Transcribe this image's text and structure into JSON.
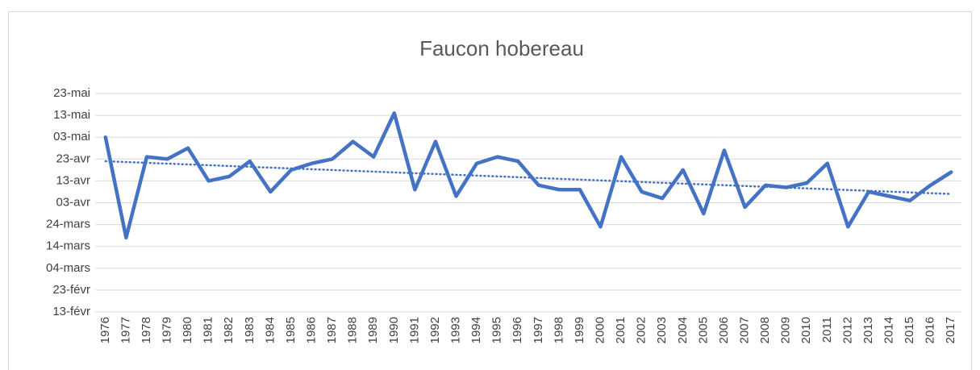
{
  "chart_data": {
    "type": "line",
    "title": "Faucon hobereau",
    "categories": [
      "1976",
      "1977",
      "1978",
      "1979",
      "1980",
      "1981",
      "1982",
      "1983",
      "1984",
      "1985",
      "1986",
      "1987",
      "1988",
      "1989",
      "1990",
      "1991",
      "1992",
      "1993",
      "1994",
      "1995",
      "1996",
      "1997",
      "1998",
      "1999",
      "2000",
      "2001",
      "2002",
      "2003",
      "2004",
      "2005",
      "2006",
      "2007",
      "2008",
      "2009",
      "2010",
      "2011",
      "2012",
      "2013",
      "2014",
      "2015",
      "2016",
      "2017"
    ],
    "values": [
      124,
      78,
      115,
      114,
      119,
      104,
      106,
      113,
      99,
      109,
      112,
      114,
      122,
      115,
      135,
      100,
      122,
      97,
      112,
      115,
      113,
      102,
      100,
      100,
      83,
      115,
      99,
      96,
      109,
      89,
      118,
      92,
      102,
      101,
      103,
      112,
      83,
      99,
      97,
      95,
      102,
      108
    ],
    "color": "#4472c4",
    "trendline": [
      113,
      98
    ],
    "ylim": [
      44,
      144
    ],
    "yticks": [
      {
        "value": 44,
        "label": "13-févr"
      },
      {
        "value": 54,
        "label": "23-févr"
      },
      {
        "value": 64,
        "label": "04-mars"
      },
      {
        "value": 74,
        "label": "14-mars"
      },
      {
        "value": 84,
        "label": "24-mars"
      },
      {
        "value": 94,
        "label": "03-avr"
      },
      {
        "value": 104,
        "label": "13-avr"
      },
      {
        "value": 114,
        "label": "23-avr"
      },
      {
        "value": 124,
        "label": "03-mai"
      },
      {
        "value": 134,
        "label": "13-mai"
      },
      {
        "value": 144,
        "label": "23-mai"
      }
    ],
    "grid": true
  }
}
